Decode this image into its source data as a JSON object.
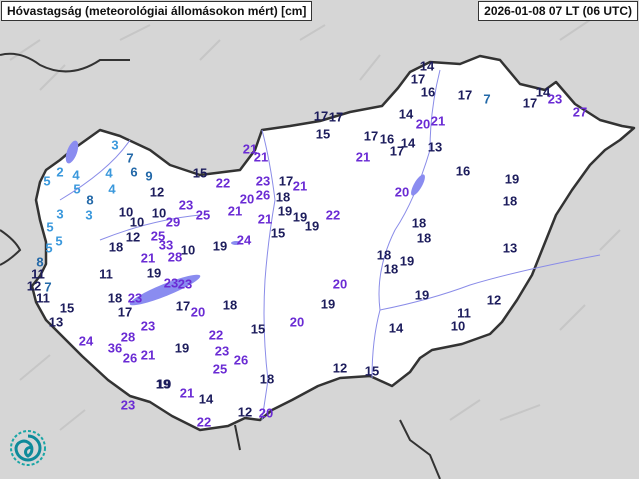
{
  "header": {
    "title": "Hóvastagság (meteorológiai állomásokon mért) [cm]",
    "timestamp": "2026-01-08 07 LT (06 UTC)"
  },
  "legend_colors": {
    "lt6": "#3a98dc",
    "6to9": "#2268a8",
    "10to19": "#1c1c5c",
    "ge20": "#6a2bd4"
  },
  "colors": {
    "land_inside": "#ffffff",
    "land_outside": "#d6d6d6",
    "border": "#333333",
    "water": "#8a8cf0",
    "river": "#8a8ce8"
  },
  "logo": "swirl-logo",
  "stations": [
    3,
    7,
    2,
    4,
    5,
    4,
    6,
    9,
    12,
    5,
    4,
    8,
    3,
    3,
    10,
    10,
    10,
    29,
    5,
    5,
    5,
    12,
    25,
    33,
    18,
    21,
    28,
    8,
    11,
    11,
    19,
    12,
    7,
    11,
    15,
    13,
    18,
    23,
    23,
    23,
    17,
    23,
    24,
    28,
    36,
    26,
    21,
    19,
    23,
    21,
    21,
    15,
    22,
    23,
    17,
    21,
    20,
    26,
    18,
    21,
    19,
    19,
    21,
    19,
    15,
    22,
    24,
    19,
    10,
    23,
    25,
    17,
    20,
    18,
    22,
    15,
    20,
    19,
    20,
    19,
    23,
    26,
    25,
    12,
    15,
    18,
    19,
    21,
    14,
    12,
    20,
    22,
    14,
    17,
    16,
    17,
    7,
    14,
    17,
    23,
    27,
    17,
    17,
    15,
    14,
    20,
    21,
    17,
    16,
    14,
    17,
    13,
    21,
    16,
    19,
    18,
    20,
    18,
    18,
    13,
    18,
    19,
    18,
    19,
    12,
    11,
    10,
    14
  ]
}
